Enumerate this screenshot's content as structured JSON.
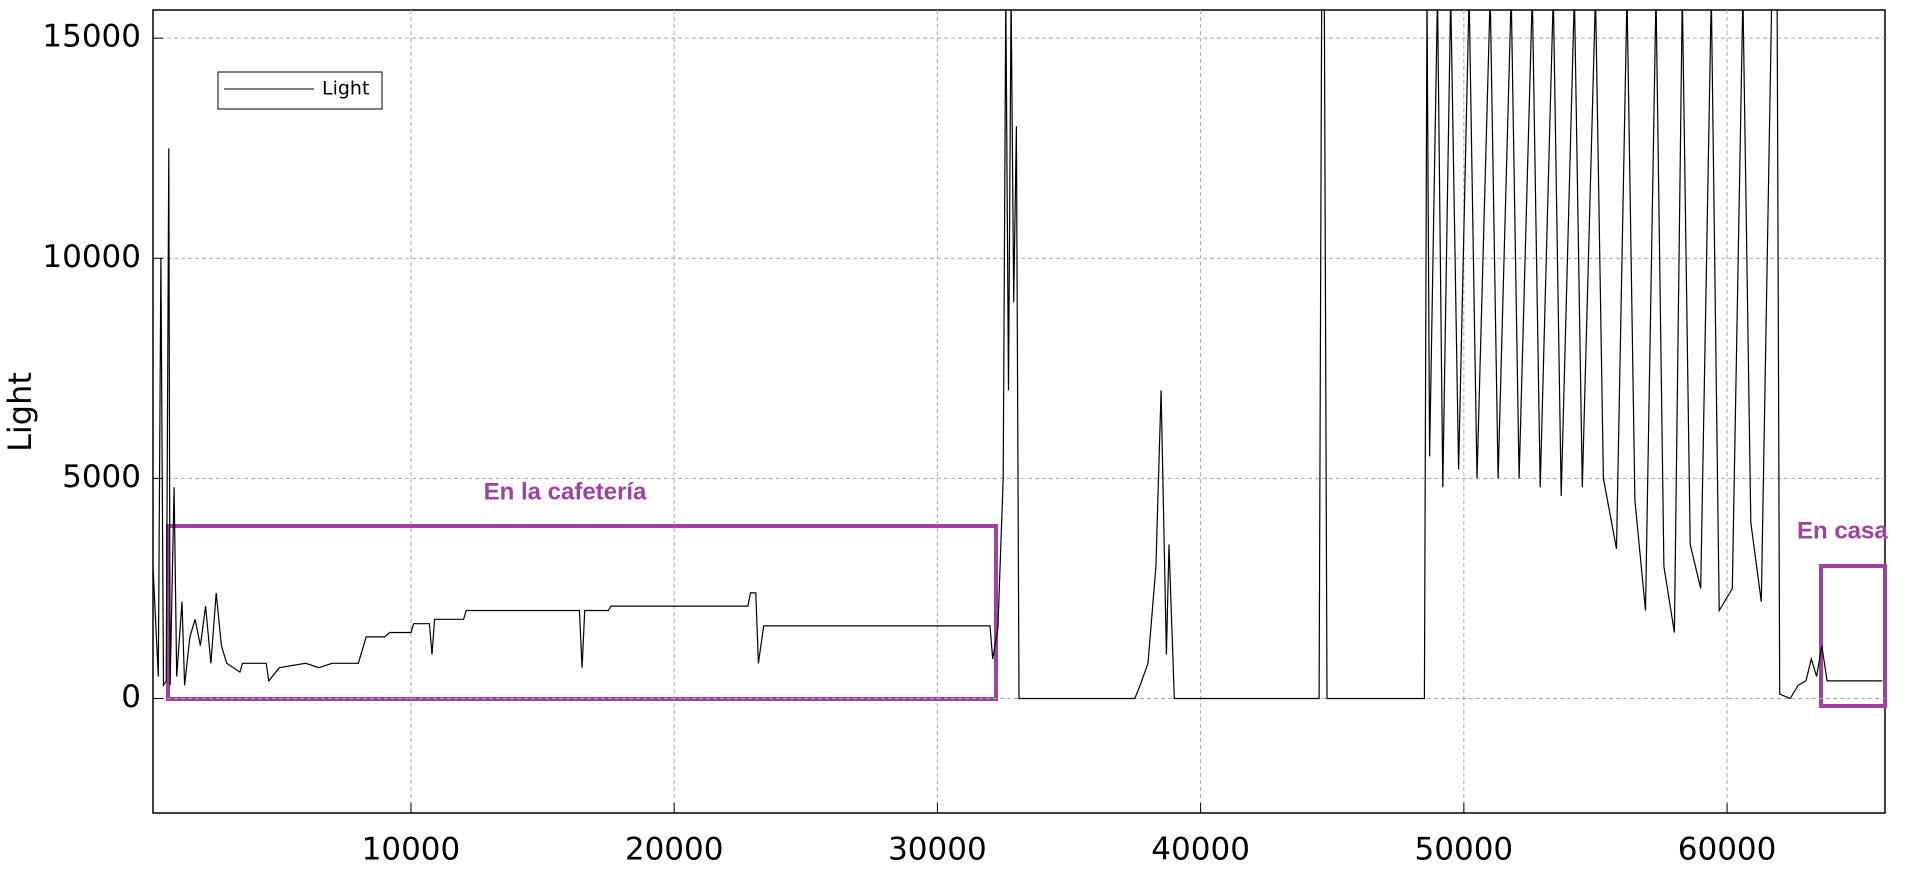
{
  "chart_data": {
    "type": "line",
    "y_label": "Light",
    "annotations": [
      "En la cafetería",
      "En casa"
    ],
    "xlim": [
      200,
      66000
    ],
    "ylim": [
      -2600,
      15640
    ],
    "xticks": [
      10000,
      20000,
      30000,
      40000,
      50000,
      60000
    ],
    "yticks": [
      0,
      5000,
      10000,
      15000
    ],
    "grid": true,
    "legend": "upper left",
    "series": [
      {
        "name": "Light",
        "color": "#000000",
        "x": [
          200,
          400,
          500,
          600,
          700,
          800,
          850,
          1000,
          1100,
          1300,
          1400,
          1600,
          1800,
          2000,
          2200,
          2400,
          2600,
          2800,
          3000,
          3500,
          3600,
          4500,
          4600,
          5000,
          6000,
          6500,
          7000,
          8000,
          8200,
          8300,
          9000,
          9200,
          10000,
          10100,
          10700,
          10800,
          10900,
          12000,
          12100,
          16400,
          16500,
          16600,
          17500,
          17600,
          22800,
          22900,
          23100,
          23200,
          23400,
          32000,
          32100,
          32300,
          32500,
          32600,
          32700,
          32800,
          32900,
          33000,
          33100,
          37500,
          37700,
          38000,
          38300,
          38500,
          38700,
          38800,
          39000,
          44500,
          44600,
          44700,
          44800,
          48500,
          48600,
          48700,
          49000,
          49200,
          49500,
          49800,
          50200,
          50500,
          51000,
          51300,
          51800,
          52100,
          52600,
          52900,
          53400,
          53700,
          54200,
          54500,
          55000,
          55300,
          55800,
          56200,
          56500,
          56900,
          57300,
          57600,
          58000,
          58300,
          58600,
          59000,
          59400,
          59700,
          60200,
          60600,
          60900,
          61300,
          61700,
          61900,
          62000,
          62400,
          62700,
          63000,
          63200,
          63400,
          63600,
          63800,
          65900
        ],
        "values": [
          3000,
          500,
          10000,
          300,
          400,
          12500,
          300,
          4800,
          500,
          2200,
          300,
          1400,
          1800,
          1200,
          2100,
          800,
          2400,
          1200,
          800,
          600,
          800,
          800,
          400,
          700,
          800,
          700,
          800,
          800,
          1200,
          1400,
          1400,
          1500,
          1500,
          1700,
          1700,
          1000,
          1800,
          1800,
          2000,
          2000,
          700,
          2000,
          2000,
          2100,
          2100,
          2400,
          2400,
          800,
          1650,
          1650,
          900,
          1600,
          5000,
          16000,
          7000,
          16000,
          9000,
          13000,
          0,
          0,
          300,
          800,
          3000,
          7000,
          1000,
          3500,
          0,
          0,
          16000,
          16000,
          0,
          0,
          16000,
          5500,
          16000,
          4800,
          16000,
          5200,
          16000,
          5000,
          16000,
          5000,
          16000,
          5000,
          16000,
          4800,
          16000,
          4600,
          16000,
          4800,
          16000,
          5000,
          3400,
          16000,
          4500,
          2000,
          16000,
          3000,
          1500,
          16000,
          3500,
          2500,
          16000,
          2000,
          2500,
          16000,
          4000,
          2200,
          16000,
          16000,
          100,
          0,
          300,
          400,
          900,
          500,
          1200,
          400,
          400
        ]
      }
    ]
  }
}
